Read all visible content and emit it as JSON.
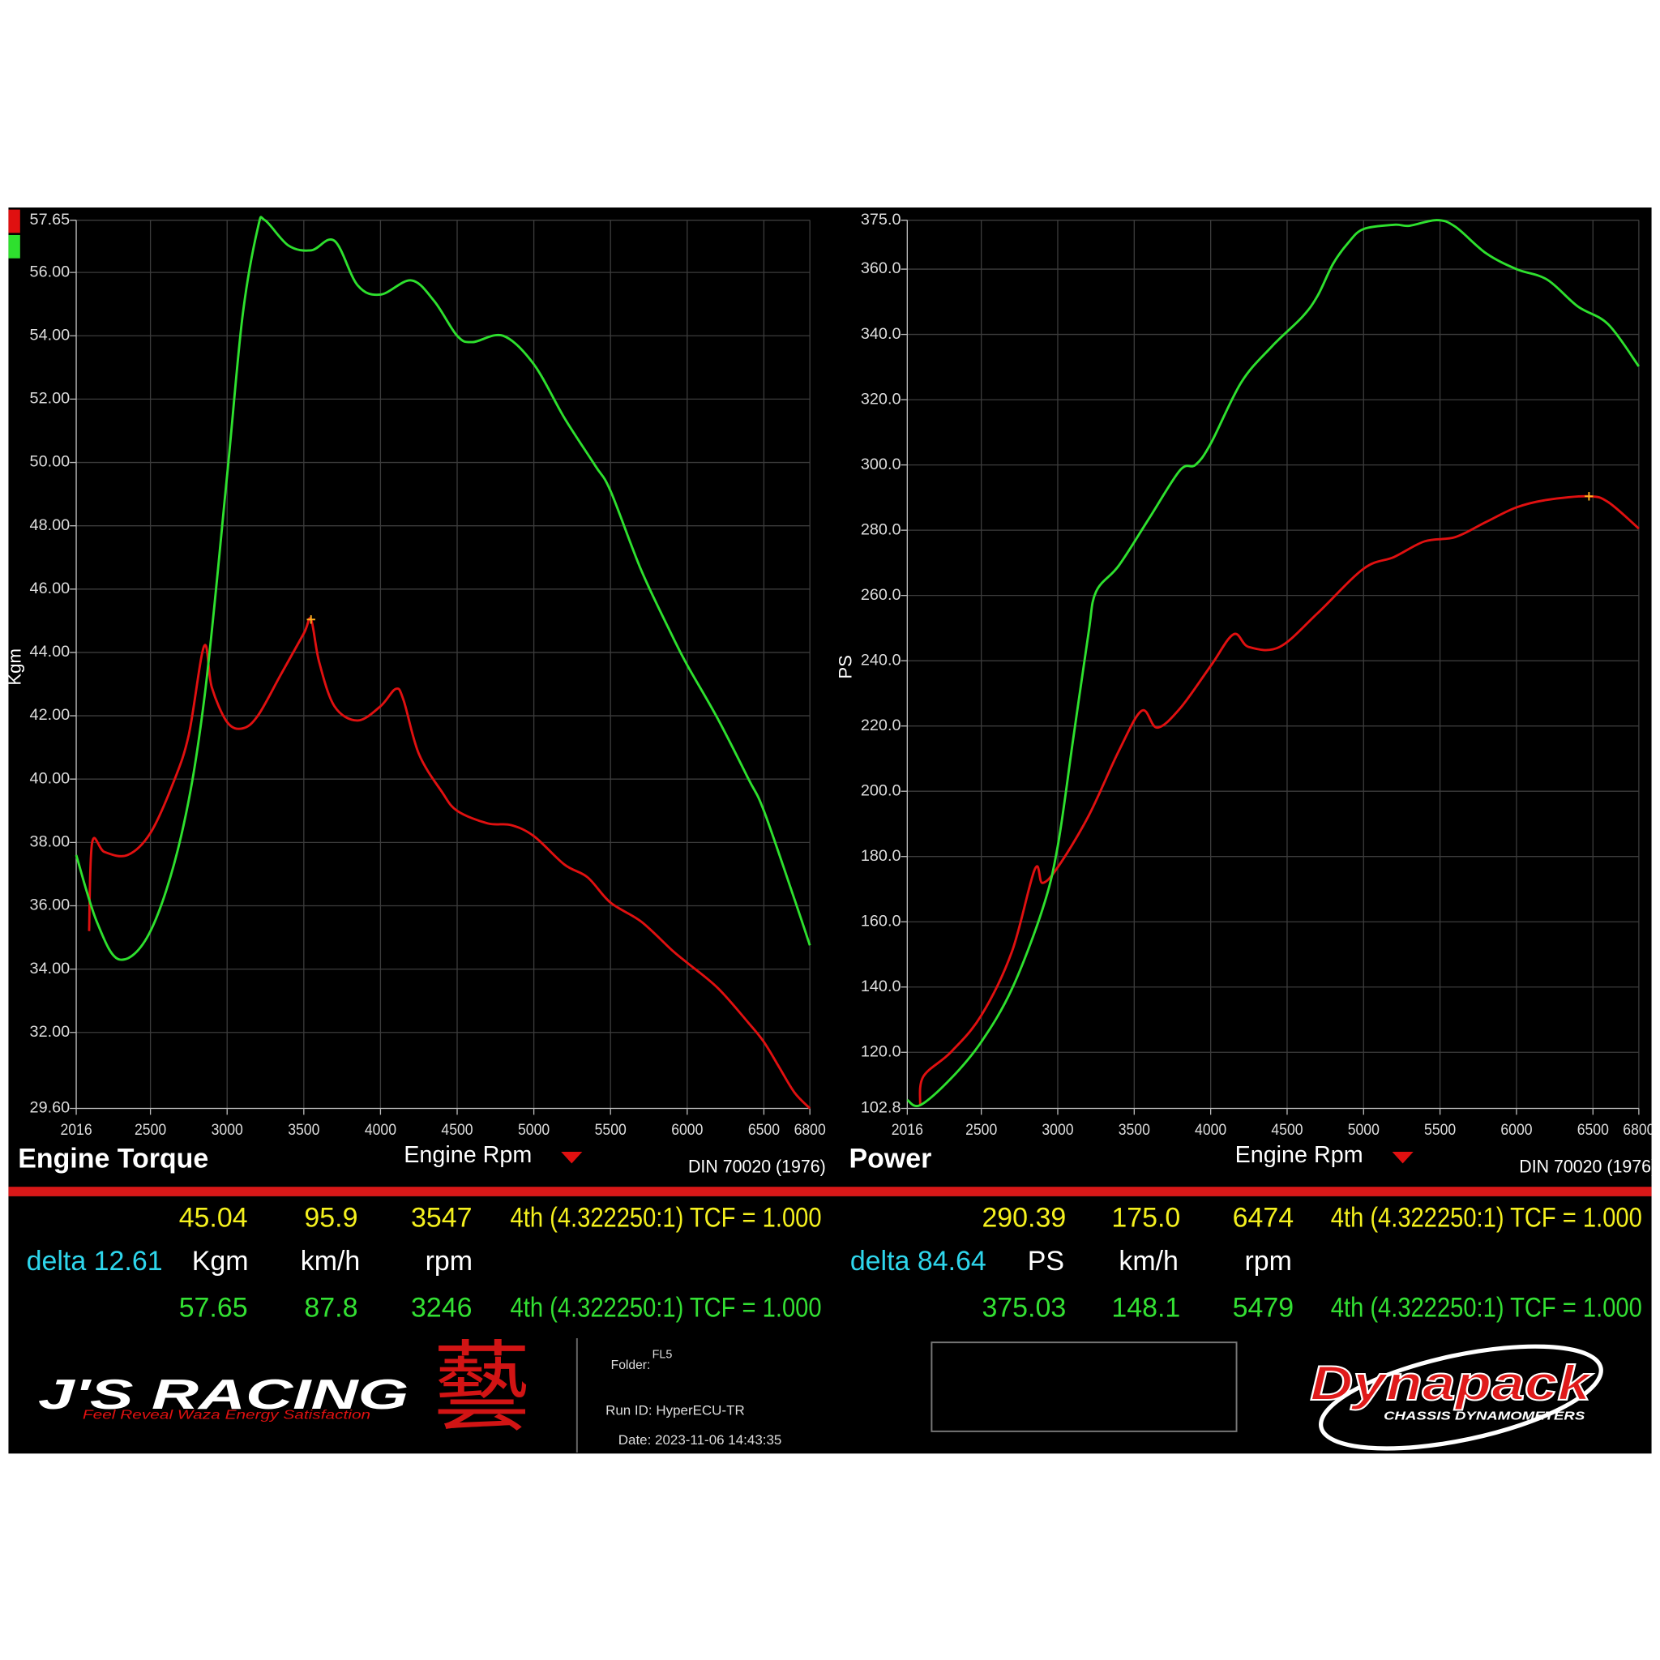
{
  "chart_data": [
    {
      "type": "line",
      "title": "Engine Torque",
      "x_label": "Engine Rpm",
      "y_label": "Kgm",
      "note": "DIN 70020 (1976)",
      "xlim": [
        2016,
        6800
      ],
      "xticks": [
        2016,
        2500,
        3000,
        3500,
        4000,
        4500,
        5000,
        5500,
        6000,
        6500,
        6800
      ],
      "ylim": [
        29.6,
        57.65
      ],
      "yticks": [
        {
          "value": 29.6,
          "label": "29.60"
        },
        {
          "value": 32,
          "label": "32.00"
        },
        {
          "value": 34,
          "label": "34.00"
        },
        {
          "value": 36,
          "label": "36.00"
        },
        {
          "value": 38,
          "label": "38.00"
        },
        {
          "value": 40,
          "label": "40.00"
        },
        {
          "value": 42,
          "label": "42.00"
        },
        {
          "value": 44,
          "label": "44.00"
        },
        {
          "value": 46,
          "label": "46.00"
        },
        {
          "value": 48,
          "label": "48.00"
        },
        {
          "value": 50,
          "label": "50.00"
        },
        {
          "value": 52,
          "label": "52.00"
        },
        {
          "value": 54,
          "label": "54.00"
        },
        {
          "value": 56,
          "label": "56.00"
        },
        {
          "value": 57.65,
          "label": "57.65"
        }
      ],
      "grid": true,
      "series": [
        {
          "color": "#e01010",
          "x": [
            2100,
            2120,
            2200,
            2350,
            2500,
            2650,
            2750,
            2850,
            2900,
            3000,
            3100,
            3200,
            3350,
            3500,
            3547,
            3600,
            3700,
            3850,
            4000,
            4100,
            4150,
            4250,
            4400,
            4500,
            4700,
            4850,
            5000,
            5200,
            5350,
            5500,
            5700,
            5900,
            6000,
            6200,
            6400,
            6500,
            6600,
            6700,
            6800
          ],
          "values": [
            35.2,
            38.0,
            37.7,
            37.6,
            38.3,
            39.9,
            41.4,
            44.2,
            42.9,
            41.8,
            41.6,
            42.0,
            43.3,
            44.6,
            45.04,
            43.7,
            42.3,
            41.85,
            42.3,
            42.85,
            42.5,
            40.8,
            39.6,
            39.0,
            38.6,
            38.55,
            38.2,
            37.3,
            36.9,
            36.1,
            35.5,
            34.6,
            34.2,
            33.4,
            32.3,
            31.7,
            30.9,
            30.1,
            29.6
          ]
        },
        {
          "color": "#2ee02e",
          "x": [
            2016,
            2150,
            2300,
            2500,
            2700,
            2850,
            3000,
            3100,
            3200,
            3246,
            3400,
            3550,
            3700,
            3850,
            4000,
            4200,
            4350,
            4500,
            4600,
            4800,
            5000,
            5200,
            5400,
            5500,
            5700,
            5900,
            6000,
            6200,
            6400,
            6500,
            6700,
            6800
          ],
          "values": [
            37.6,
            35.5,
            34.3,
            35.2,
            38.2,
            42.5,
            49.6,
            54.6,
            57.4,
            57.65,
            56.85,
            56.7,
            57.0,
            55.6,
            55.3,
            55.75,
            55.1,
            54.0,
            53.8,
            54.0,
            53.1,
            51.4,
            49.9,
            49.1,
            46.6,
            44.55,
            43.6,
            41.9,
            40.0,
            39.0,
            36.2,
            34.75
          ]
        }
      ],
      "cursor": {
        "x": 3547,
        "y": 45.04
      }
    },
    {
      "type": "line",
      "title": "Power",
      "x_label": "Engine Rpm",
      "y_label": "PS",
      "note": "DIN 70020 (1976)",
      "xlim": [
        2016,
        6800
      ],
      "xticks": [
        2016,
        2500,
        3000,
        3500,
        4000,
        4500,
        5000,
        5500,
        6000,
        6500,
        6800
      ],
      "ylim": [
        102.8,
        375
      ],
      "yticks": [
        {
          "value": 102.8,
          "label": "102.8"
        },
        {
          "value": 120,
          "label": "120.0"
        },
        {
          "value": 140,
          "label": "140.0"
        },
        {
          "value": 160,
          "label": "160.0"
        },
        {
          "value": 180,
          "label": "180.0"
        },
        {
          "value": 200,
          "label": "200.0"
        },
        {
          "value": 220,
          "label": "220.0"
        },
        {
          "value": 240,
          "label": "240.0"
        },
        {
          "value": 260,
          "label": "260.0"
        },
        {
          "value": 280,
          "label": "280.0"
        },
        {
          "value": 300,
          "label": "300.0"
        },
        {
          "value": 320,
          "label": "320.0"
        },
        {
          "value": 340,
          "label": "340.0"
        },
        {
          "value": 360,
          "label": "360.0"
        },
        {
          "value": 375,
          "label": "375.0"
        }
      ],
      "grid": true,
      "series": [
        {
          "color": "#e01010",
          "x": [
            2100,
            2120,
            2300,
            2500,
            2700,
            2850,
            2900,
            3000,
            3200,
            3400,
            3550,
            3650,
            3800,
            4000,
            4150,
            4250,
            4450,
            4700,
            5000,
            5200,
            5400,
            5600,
            5800,
            6000,
            6200,
            6474,
            6600,
            6800
          ],
          "values": [
            103.8,
            112.5,
            120.0,
            131.3,
            150.8,
            176.1,
            171.9,
            176.7,
            192.3,
            212.4,
            224.7,
            219.5,
            225.4,
            238.4,
            248.1,
            244.2,
            244.2,
            254.6,
            268.2,
            271.8,
            276.6,
            277.9,
            282.5,
            287.0,
            289.3,
            290.39,
            288.6,
            280.5
          ]
        },
        {
          "color": "#2ee02e",
          "x": [
            2016,
            2100,
            2300,
            2500,
            2700,
            2900,
            3000,
            3100,
            3200,
            3250,
            3400,
            3600,
            3800,
            3900,
            4000,
            4200,
            4400,
            4600,
            4700,
            4800,
            4900,
            5000,
            5200,
            5300,
            5479,
            5600,
            5800,
            6000,
            6200,
            6400,
            6600,
            6800
          ],
          "values": [
            105.4,
            103.8,
            111.9,
            123.2,
            139.4,
            163.8,
            183.2,
            215.7,
            248.1,
            261.1,
            269.2,
            283.8,
            298.4,
            300.0,
            306.5,
            325.3,
            336.3,
            345.4,
            351.9,
            361.6,
            368.1,
            372.3,
            373.6,
            373.3,
            375.03,
            373.0,
            364.9,
            360.0,
            356.8,
            348.6,
            343.1,
            330.2
          ]
        }
      ],
      "cursor": {
        "x": 6474,
        "y": 290.39
      }
    }
  ],
  "readout": [
    {
      "rows": [
        [
          "45.04",
          "95.9",
          "3547",
          "4th (4.322250:1) TCF = 1.000"
        ],
        [
          "delta 12.61",
          "Kgm",
          "km/h",
          "rpm"
        ],
        [
          "57.65",
          "87.8",
          "3246",
          "4th (4.322250:1) TCF = 1.000"
        ]
      ]
    },
    {
      "rows": [
        [
          "290.39",
          "175.0",
          "6474",
          "4th (4.322250:1) TCF = 1.000"
        ],
        [
          "delta 84.64",
          "PS",
          "km/h",
          "rpm"
        ],
        [
          "375.03",
          "148.1",
          "5479",
          "4th (4.322250:1) TCF = 1.000"
        ]
      ]
    }
  ],
  "footer": {
    "brand": "J'S RACING",
    "tagline": "Feel Reveal Waza Energy Satisfaction",
    "kanji": "藝",
    "folder_label": "Folder:",
    "folder": "FL5",
    "run_id": "Run ID: HyperECU-TR",
    "date": "Date: 2023-11-06 14:43:35",
    "dynapack": "Dynapack",
    "dynapack_sub": "CHASSIS DYNAMOMETERS"
  }
}
